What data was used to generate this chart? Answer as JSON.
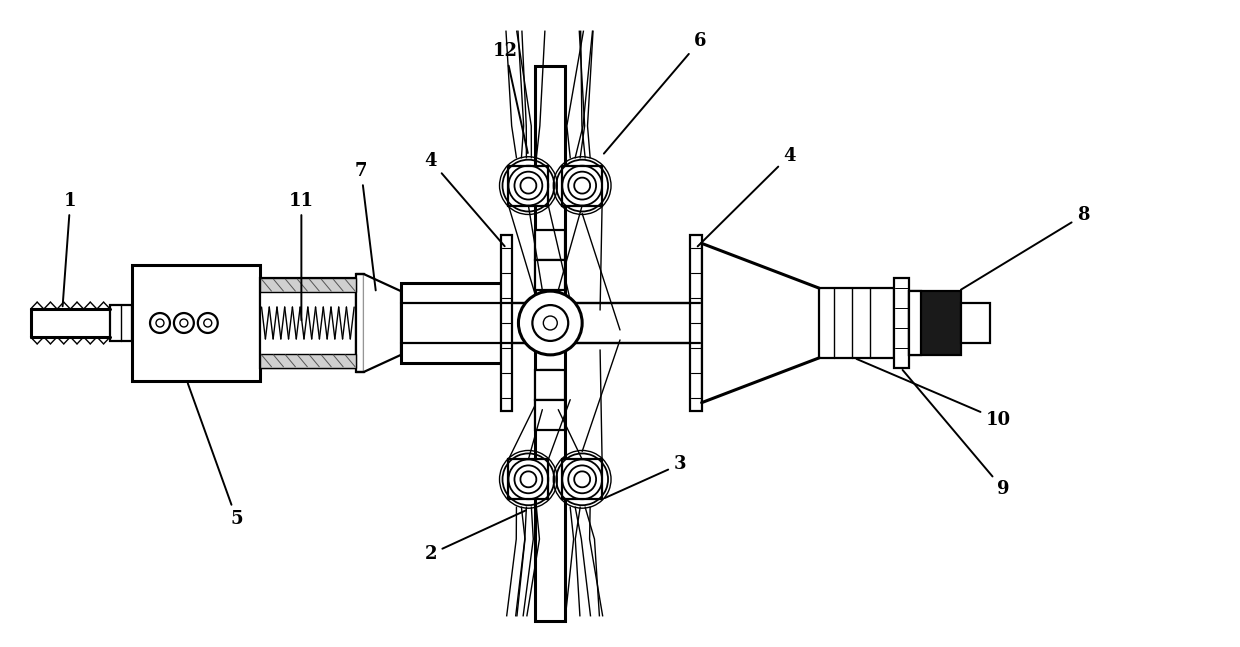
{
  "bg_color": "#ffffff",
  "line_color": "#000000",
  "figsize": [
    12.4,
    6.47
  ],
  "dpi": 100,
  "lw_main": 1.6,
  "lw_thick": 2.2,
  "lw_thin": 1.0,
  "font_size": 13
}
